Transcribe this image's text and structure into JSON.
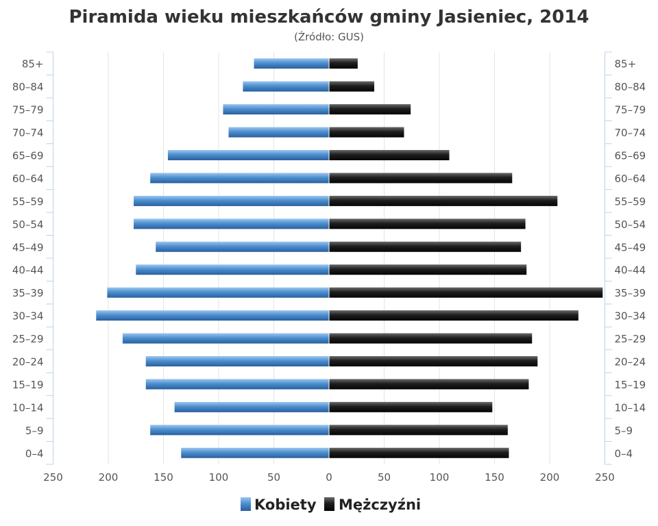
{
  "chart_data": {
    "type": "bar",
    "orientation": "horizontal",
    "layout": "population-pyramid",
    "title": "Piramida wieku mieszkańców gminy Jasieniec, 2014",
    "subtitle": "(Źródło: GUS)",
    "categories": [
      "85+",
      "80-84",
      "75-79",
      "70-74",
      "65-69",
      "60-64",
      "55-59",
      "50-54",
      "45-49",
      "40-44",
      "35-39",
      "30-34",
      "25-29",
      "20-24",
      "15-19",
      "10-14",
      "5-9",
      "0-4"
    ],
    "series": [
      {
        "name": "Kobiety",
        "color": "#3f7fc0",
        "side": "left",
        "values": [
          68,
          78,
          96,
          91,
          146,
          162,
          177,
          177,
          157,
          175,
          201,
          211,
          187,
          166,
          166,
          140,
          162,
          134
        ]
      },
      {
        "name": "Mężczyźni",
        "color": "#1a1a1a",
        "side": "right",
        "values": [
          26,
          41,
          74,
          68,
          109,
          166,
          207,
          178,
          174,
          179,
          248,
          226,
          184,
          189,
          181,
          148,
          162,
          163
        ]
      }
    ],
    "xlim": [
      -250,
      250
    ],
    "xticks": [
      "250",
      "200",
      "150",
      "100",
      "50",
      "0",
      "50",
      "100",
      "150",
      "200",
      "250"
    ],
    "grid": true,
    "legend_position": "bottom-center"
  }
}
